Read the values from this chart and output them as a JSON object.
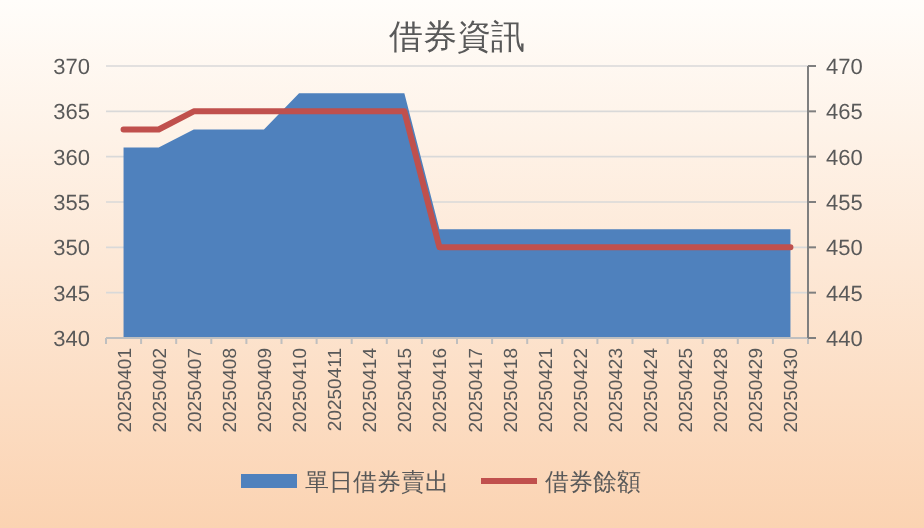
{
  "chart_data": {
    "type": "area",
    "title": "借券資訊",
    "categories": [
      "20250401",
      "20250402",
      "20250407",
      "20250408",
      "20250409",
      "20250410",
      "20250411",
      "20250414",
      "20250415",
      "20250416",
      "20250417",
      "20250418",
      "20250421",
      "20250422",
      "20250423",
      "20250424",
      "20250425",
      "20250428",
      "20250429",
      "20250430"
    ],
    "series": [
      {
        "name": "單日借券賣出",
        "color": "#4f81bd",
        "values": [
          361,
          361,
          363,
          363,
          363,
          367,
          367,
          367,
          367,
          352,
          352,
          352,
          352,
          352,
          352,
          352,
          352,
          352,
          352,
          352
        ]
      },
      {
        "name": "借券餘額",
        "type": "line",
        "axis": "y2",
        "color": "#c0504d",
        "values": [
          463,
          463,
          465,
          465,
          465,
          465,
          465,
          465,
          465,
          450,
          450,
          450,
          450,
          450,
          450,
          450,
          450,
          450,
          450,
          450
        ]
      }
    ],
    "ylim": [
      340,
      370
    ],
    "yticks": [
      340,
      345,
      350,
      355,
      360,
      365,
      370
    ],
    "y2lim": [
      440,
      470
    ],
    "y2ticks": [
      440,
      445,
      450,
      455,
      460,
      465,
      470
    ],
    "grid": "y",
    "legend": "bottom"
  }
}
